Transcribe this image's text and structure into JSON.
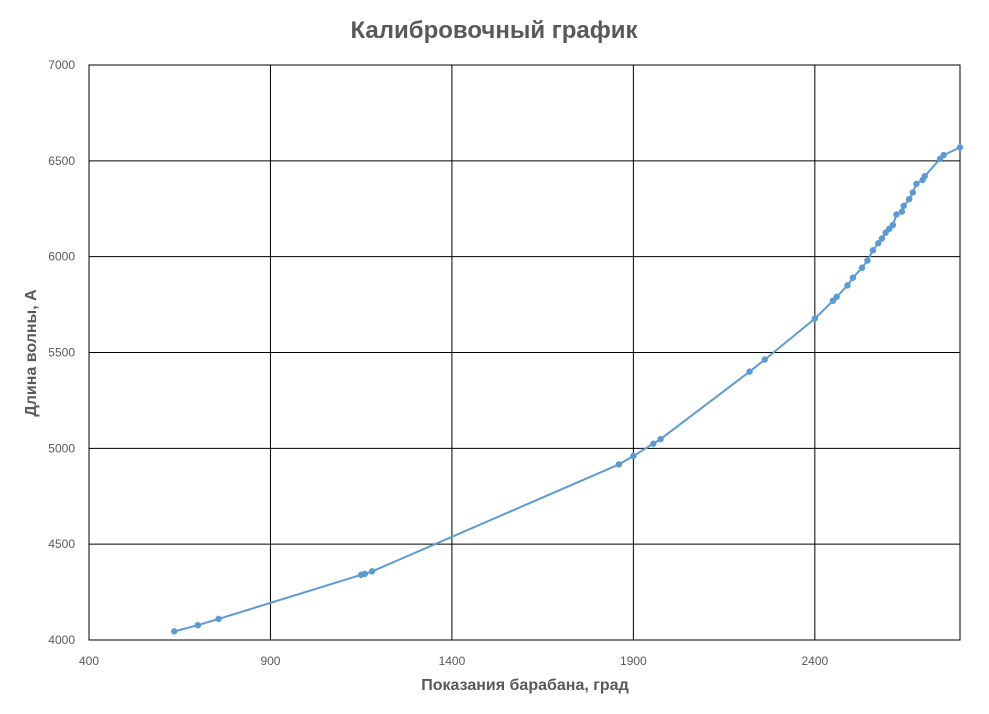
{
  "chart_data": {
    "type": "line",
    "title": "Калибровочный график",
    "xlabel": "Показания барабана, град",
    "ylabel": "Длина волны, А",
    "xlim": [
      400,
      2800
    ],
    "ylim": [
      4000,
      7000
    ],
    "xticks": [
      400,
      900,
      1400,
      1900,
      2400
    ],
    "yticks": [
      4000,
      4500,
      5000,
      5500,
      6000,
      6500,
      7000
    ],
    "grid": true,
    "legend": "none",
    "series_color": "#5b9bd5",
    "grid_color": "#000000",
    "series": [
      {
        "name": "",
        "x": [
          635,
          700,
          757,
          1150,
          1160,
          1180,
          1860,
          1900,
          1955,
          1975,
          2220,
          2262,
          2400,
          2450,
          2460,
          2490,
          2505,
          2530,
          2545,
          2560,
          2575,
          2585,
          2595,
          2605,
          2615,
          2625,
          2640,
          2645,
          2660,
          2670,
          2680,
          2697,
          2703,
          2745,
          2755,
          2800
        ],
        "y": [
          4045,
          4077,
          4110,
          4340,
          4345,
          4358,
          4916,
          4960,
          5024,
          5048,
          5400,
          5463,
          5677,
          5770,
          5790,
          5850,
          5890,
          5942,
          5980,
          6033,
          6070,
          6095,
          6125,
          6145,
          6165,
          6220,
          6235,
          6265,
          6300,
          6335,
          6380,
          6400,
          6420,
          6510,
          6530,
          6570
        ]
      }
    ]
  }
}
